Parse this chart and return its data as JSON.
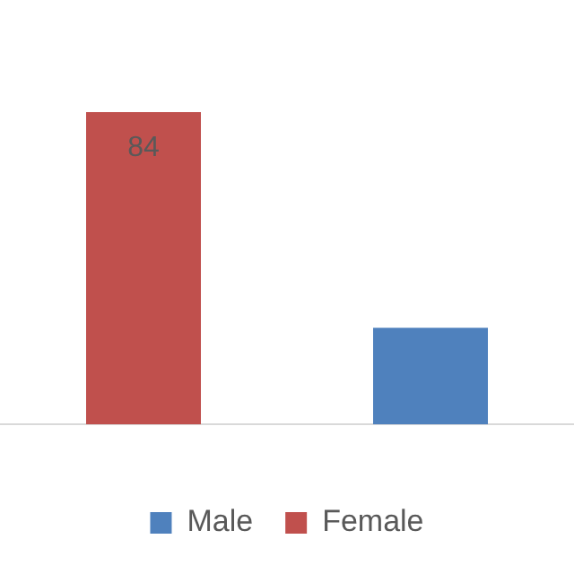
{
  "chart_data": {
    "type": "bar",
    "categories": [
      null,
      null
    ],
    "stacked": true,
    "legend": "bottom",
    "series": [
      {
        "name": "Male",
        "color": "#4f81bd",
        "values": [
          null,
          26
        ]
      },
      {
        "name": "Female",
        "color": "#c0504d",
        "values": [
          84,
          null
        ],
        "value_labels": [
          "84",
          null
        ]
      }
    ]
  }
}
